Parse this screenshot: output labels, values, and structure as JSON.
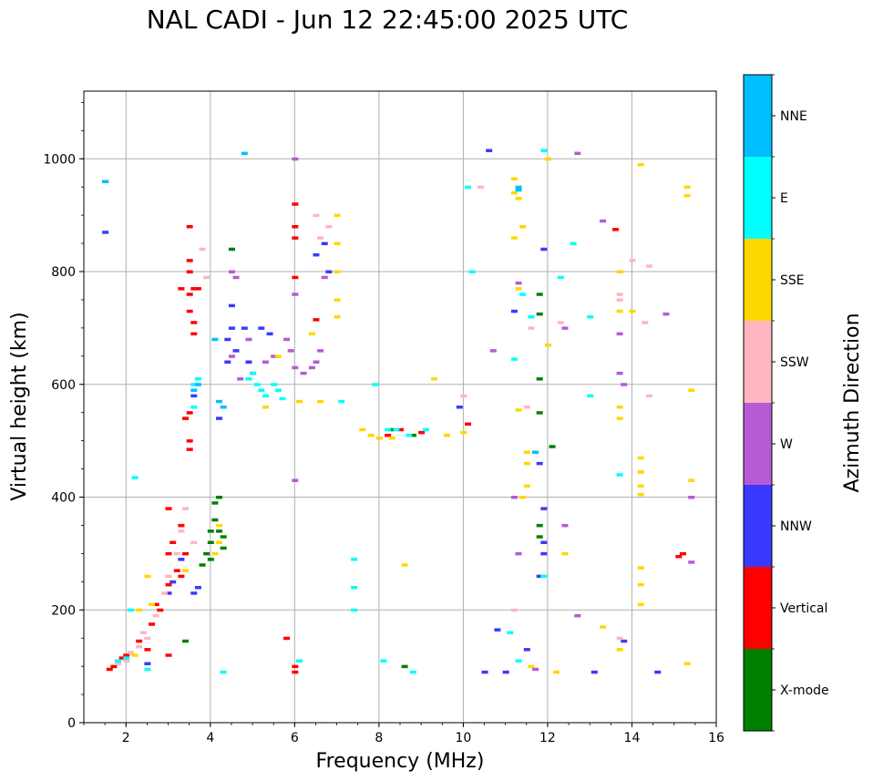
{
  "chart_data": {
    "type": "scatter",
    "title": "NAL CADI - Jun 12 22:45:00 2025 UTC",
    "xlabel": "Frequency (MHz)",
    "ylabel": "Virtual height (km)",
    "xlim": [
      1,
      16
    ],
    "ylim": [
      0,
      1120
    ],
    "xticks": [
      2,
      4,
      6,
      8,
      10,
      12,
      14,
      16
    ],
    "yticks": [
      0,
      200,
      400,
      600,
      800,
      1000
    ],
    "grid": true,
    "colorbar": {
      "label": "Azimuth Direction",
      "categories": [
        "X-mode",
        "Vertical",
        "NNW",
        "W",
        "SSW",
        "SSE",
        "E",
        "NNE"
      ],
      "colors": {
        "X-mode": "#008000",
        "Vertical": "#ff0000",
        "NNW": "#3a3aff",
        "W": "#b65bd6",
        "SSW": "#ffb6c1",
        "SSE": "#ffd700",
        "E": "#00ffff",
        "NNE": "#00bfff"
      }
    },
    "series": [
      {
        "name": "Vertical",
        "points": [
          [
            1.6,
            95
          ],
          [
            1.7,
            100
          ],
          [
            1.9,
            115
          ],
          [
            2.0,
            120
          ],
          [
            2.3,
            145
          ],
          [
            2.6,
            175
          ],
          [
            2.7,
            210
          ],
          [
            2.8,
            200
          ],
          [
            3.0,
            245
          ],
          [
            3.0,
            300
          ],
          [
            3.0,
            380
          ],
          [
            3.1,
            320
          ],
          [
            3.2,
            270
          ],
          [
            3.3,
            350
          ],
          [
            3.4,
            300
          ],
          [
            3.3,
            260
          ],
          [
            3.5,
            485
          ],
          [
            3.5,
            500
          ],
          [
            3.4,
            540
          ],
          [
            3.5,
            550
          ],
          [
            3.6,
            690
          ],
          [
            3.6,
            710
          ],
          [
            3.5,
            730
          ],
          [
            3.5,
            760
          ],
          [
            3.6,
            770
          ],
          [
            3.5,
            800
          ],
          [
            3.5,
            820
          ],
          [
            3.5,
            880
          ],
          [
            3.3,
            770
          ],
          [
            3.7,
            770
          ],
          [
            6.0,
            920
          ],
          [
            6.0,
            880
          ],
          [
            6.0,
            860
          ],
          [
            6.0,
            790
          ],
          [
            6.5,
            715
          ],
          [
            8.2,
            510
          ],
          [
            8.5,
            520
          ],
          [
            9.0,
            515
          ],
          [
            10.1,
            530
          ],
          [
            13.6,
            875
          ],
          [
            15.1,
            295
          ],
          [
            15.2,
            300
          ],
          [
            5.8,
            150
          ],
          [
            6.0,
            100
          ],
          [
            6.0,
            90
          ],
          [
            3.0,
            120
          ],
          [
            2.5,
            130
          ]
        ]
      },
      {
        "name": "X-mode",
        "points": [
          [
            3.8,
            280
          ],
          [
            3.9,
            300
          ],
          [
            4.0,
            320
          ],
          [
            4.0,
            340
          ],
          [
            4.1,
            360
          ],
          [
            4.1,
            390
          ],
          [
            4.2,
            400
          ],
          [
            4.2,
            340
          ],
          [
            4.0,
            290
          ],
          [
            4.3,
            310
          ],
          [
            4.3,
            330
          ],
          [
            11.8,
            760
          ],
          [
            11.8,
            725
          ],
          [
            11.8,
            610
          ],
          [
            11.8,
            550
          ],
          [
            11.8,
            350
          ],
          [
            11.8,
            330
          ],
          [
            12.1,
            490
          ],
          [
            8.6,
            100
          ],
          [
            3.4,
            145
          ],
          [
            4.5,
            840
          ],
          [
            8.3,
            520
          ],
          [
            8.8,
            510
          ]
        ]
      },
      {
        "name": "NNW",
        "points": [
          [
            1.5,
            960
          ],
          [
            1.5,
            870
          ],
          [
            3.0,
            230
          ],
          [
            3.1,
            250
          ],
          [
            3.3,
            290
          ],
          [
            3.6,
            580
          ],
          [
            3.7,
            240
          ],
          [
            3.6,
            230
          ],
          [
            4.2,
            540
          ],
          [
            4.4,
            640
          ],
          [
            4.4,
            680
          ],
          [
            4.5,
            700
          ],
          [
            4.5,
            740
          ],
          [
            4.6,
            660
          ],
          [
            4.8,
            700
          ],
          [
            4.9,
            640
          ],
          [
            5.0,
            620
          ],
          [
            5.2,
            700
          ],
          [
            5.4,
            690
          ],
          [
            6.5,
            830
          ],
          [
            6.7,
            850
          ],
          [
            6.8,
            800
          ],
          [
            9.9,
            560
          ],
          [
            10.5,
            90
          ],
          [
            10.8,
            165
          ],
          [
            11.0,
            90
          ],
          [
            11.7,
            480
          ],
          [
            11.8,
            460
          ],
          [
            11.9,
            380
          ],
          [
            11.9,
            320
          ],
          [
            11.9,
            300
          ],
          [
            11.8,
            260
          ],
          [
            11.9,
            840
          ],
          [
            11.2,
            730
          ],
          [
            11.5,
            130
          ],
          [
            13.1,
            90
          ],
          [
            13.8,
            145
          ],
          [
            14.6,
            90
          ],
          [
            10.6,
            1015
          ],
          [
            2.5,
            105
          ]
        ]
      },
      {
        "name": "W",
        "points": [
          [
            4.5,
            800
          ],
          [
            4.6,
            790
          ],
          [
            4.5,
            650
          ],
          [
            4.7,
            610
          ],
          [
            4.9,
            680
          ],
          [
            5.3,
            640
          ],
          [
            5.5,
            650
          ],
          [
            5.8,
            680
          ],
          [
            5.9,
            660
          ],
          [
            6.0,
            630
          ],
          [
            6.2,
            620
          ],
          [
            6.4,
            630
          ],
          [
            6.5,
            640
          ],
          [
            6.6,
            660
          ],
          [
            6.0,
            760
          ],
          [
            6.0,
            1000
          ],
          [
            6.0,
            430
          ],
          [
            6.7,
            790
          ],
          [
            10.7,
            660
          ],
          [
            11.2,
            400
          ],
          [
            11.3,
            300
          ],
          [
            11.7,
            480
          ],
          [
            12.4,
            350
          ],
          [
            12.7,
            1010
          ],
          [
            12.7,
            190
          ],
          [
            12.4,
            700
          ],
          [
            13.3,
            890
          ],
          [
            13.7,
            690
          ],
          [
            13.7,
            620
          ],
          [
            13.8,
            600
          ],
          [
            14.8,
            725
          ],
          [
            15.4,
            285
          ],
          [
            15.4,
            400
          ],
          [
            11.3,
            780
          ],
          [
            11.7,
            95
          ]
        ]
      },
      {
        "name": "SSW",
        "points": [
          [
            1.8,
            105
          ],
          [
            2.0,
            110
          ],
          [
            2.1,
            125
          ],
          [
            2.3,
            135
          ],
          [
            2.4,
            160
          ],
          [
            2.5,
            150
          ],
          [
            2.7,
            190
          ],
          [
            2.9,
            230
          ],
          [
            3.0,
            260
          ],
          [
            3.2,
            300
          ],
          [
            3.3,
            340
          ],
          [
            3.4,
            380
          ],
          [
            3.6,
            320
          ],
          [
            3.8,
            840
          ],
          [
            3.9,
            790
          ],
          [
            6.5,
            900
          ],
          [
            6.6,
            860
          ],
          [
            6.8,
            880
          ],
          [
            10.0,
            580
          ],
          [
            10.4,
            950
          ],
          [
            11.2,
            200
          ],
          [
            11.5,
            560
          ],
          [
            11.6,
            700
          ],
          [
            12.3,
            710
          ],
          [
            13.7,
            760
          ],
          [
            13.7,
            750
          ],
          [
            13.7,
            150
          ],
          [
            14.0,
            820
          ],
          [
            14.3,
            710
          ],
          [
            14.4,
            580
          ],
          [
            14.4,
            810
          ],
          [
            14.2,
            445
          ]
        ]
      },
      {
        "name": "SSE",
        "points": [
          [
            2.2,
            120
          ],
          [
            2.3,
            200
          ],
          [
            2.5,
            260
          ],
          [
            2.6,
            210
          ],
          [
            3.4,
            270
          ],
          [
            4.1,
            300
          ],
          [
            4.2,
            320
          ],
          [
            4.2,
            350
          ],
          [
            5.3,
            560
          ],
          [
            5.6,
            650
          ],
          [
            6.1,
            570
          ],
          [
            6.4,
            690
          ],
          [
            6.6,
            570
          ],
          [
            7.0,
            720
          ],
          [
            7.0,
            750
          ],
          [
            7.0,
            800
          ],
          [
            7.0,
            850
          ],
          [
            7.0,
            900
          ],
          [
            7.6,
            520
          ],
          [
            7.8,
            510
          ],
          [
            8.0,
            505
          ],
          [
            8.3,
            505
          ],
          [
            8.6,
            280
          ],
          [
            9.3,
            610
          ],
          [
            9.6,
            510
          ],
          [
            10.0,
            515
          ],
          [
            11.2,
            965
          ],
          [
            11.2,
            940
          ],
          [
            11.3,
            930
          ],
          [
            11.4,
            880
          ],
          [
            11.2,
            860
          ],
          [
            11.3,
            770
          ],
          [
            11.3,
            555
          ],
          [
            11.5,
            480
          ],
          [
            11.5,
            460
          ],
          [
            11.5,
            420
          ],
          [
            11.4,
            400
          ],
          [
            11.6,
            100
          ],
          [
            12.0,
            1000
          ],
          [
            12.0,
            670
          ],
          [
            12.2,
            90
          ],
          [
            12.4,
            300
          ],
          [
            13.3,
            170
          ],
          [
            13.7,
            800
          ],
          [
            13.7,
            800
          ],
          [
            13.7,
            730
          ],
          [
            13.7,
            560
          ],
          [
            13.7,
            540
          ],
          [
            13.7,
            130
          ],
          [
            14.0,
            730
          ],
          [
            14.2,
            990
          ],
          [
            14.2,
            470
          ],
          [
            14.2,
            445
          ],
          [
            14.2,
            420
          ],
          [
            14.2,
            405
          ],
          [
            14.2,
            275
          ],
          [
            14.2,
            245
          ],
          [
            14.2,
            210
          ],
          [
            15.3,
            950
          ],
          [
            15.3,
            935
          ],
          [
            15.4,
            590
          ],
          [
            15.4,
            430
          ],
          [
            15.3,
            105
          ]
        ]
      },
      {
        "name": "E",
        "points": [
          [
            1.8,
            110
          ],
          [
            2.0,
            115
          ],
          [
            2.1,
            200
          ],
          [
            2.5,
            95
          ],
          [
            3.6,
            560
          ],
          [
            3.6,
            600
          ],
          [
            3.7,
            610
          ],
          [
            4.3,
            90
          ],
          [
            4.9,
            610
          ],
          [
            5.0,
            620
          ],
          [
            5.1,
            600
          ],
          [
            5.2,
            590
          ],
          [
            5.3,
            580
          ],
          [
            5.5,
            600
          ],
          [
            5.6,
            590
          ],
          [
            5.7,
            575
          ],
          [
            6.1,
            110
          ],
          [
            7.1,
            570
          ],
          [
            7.4,
            290
          ],
          [
            7.4,
            240
          ],
          [
            7.4,
            200
          ],
          [
            7.9,
            600
          ],
          [
            8.1,
            110
          ],
          [
            8.2,
            520
          ],
          [
            8.4,
            520
          ],
          [
            8.7,
            510
          ],
          [
            8.8,
            90
          ],
          [
            9.1,
            520
          ],
          [
            10.1,
            950
          ],
          [
            10.2,
            800
          ],
          [
            11.1,
            160
          ],
          [
            11.2,
            645
          ],
          [
            11.3,
            110
          ],
          [
            11.4,
            760
          ],
          [
            11.6,
            720
          ],
          [
            11.9,
            1015
          ],
          [
            11.9,
            260
          ],
          [
            12.3,
            790
          ],
          [
            12.6,
            850
          ],
          [
            13.0,
            720
          ],
          [
            13.0,
            580
          ],
          [
            13.7,
            440
          ],
          [
            2.2,
            435
          ]
        ]
      },
      {
        "name": "NNE",
        "points": [
          [
            1.5,
            960
          ],
          [
            3.6,
            590
          ],
          [
            3.7,
            600
          ],
          [
            4.1,
            680
          ],
          [
            4.2,
            570
          ],
          [
            4.3,
            560
          ],
          [
            4.8,
            1010
          ],
          [
            11.3,
            950
          ],
          [
            11.3,
            945
          ],
          [
            11.7,
            480
          ]
        ]
      }
    ]
  }
}
